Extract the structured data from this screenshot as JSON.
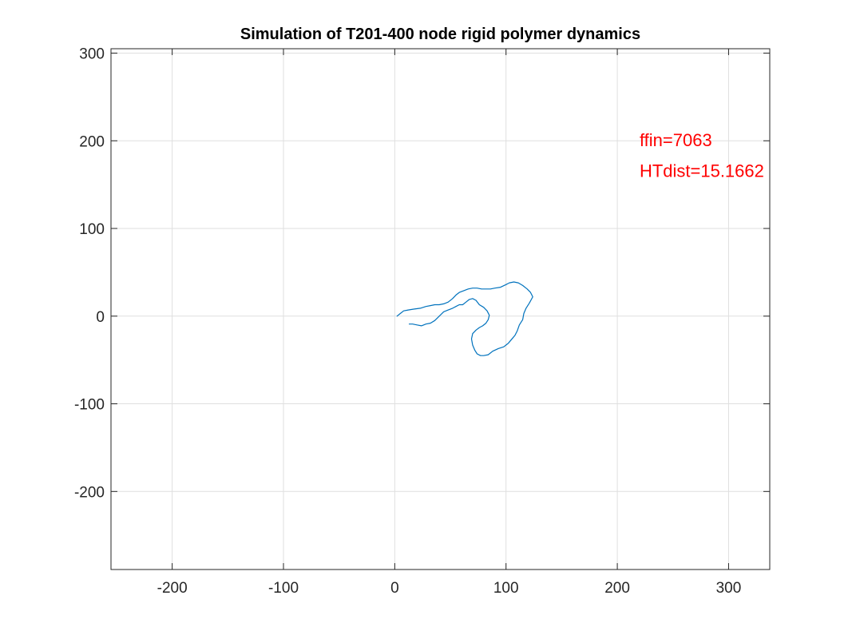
{
  "chart_data": {
    "type": "line",
    "title": "Simulation of T201-400 node rigid polymer dynamics",
    "xlabel": "",
    "ylabel": "",
    "xlim": [
      -255,
      337
    ],
    "ylim": [
      -289,
      305
    ],
    "xticks": [
      -200,
      -100,
      0,
      100,
      200,
      300
    ],
    "xtick_labels": [
      "-200",
      "-100",
      "0",
      "100",
      "200",
      "300"
    ],
    "yticks": [
      -200,
      -100,
      0,
      100,
      200,
      300
    ],
    "ytick_labels": [
      "-200",
      "-100",
      "0",
      "100",
      "200",
      "300"
    ],
    "grid": true,
    "series": [
      {
        "color": "#0072BD",
        "x": [
          2,
          5,
          8,
          12,
          17,
          23,
          28,
          32,
          36,
          40,
          44,
          48,
          52,
          55,
          58,
          62,
          66,
          70,
          74,
          78,
          82,
          86,
          90,
          95,
          100,
          103,
          107,
          111,
          115,
          119,
          122,
          124,
          121,
          118,
          116,
          115,
          112,
          110,
          108,
          106,
          102,
          98,
          93,
          88,
          84,
          80,
          77,
          74,
          72,
          70,
          69,
          70,
          73,
          76,
          79,
          82,
          84,
          85,
          83,
          80,
          76,
          73,
          70,
          67,
          64,
          61,
          58,
          55,
          52,
          48,
          44,
          40,
          36,
          32,
          28,
          24,
          20,
          16,
          13
        ],
        "y": [
          0,
          3,
          6,
          7,
          8,
          9,
          11,
          12,
          13,
          13,
          14,
          16,
          20,
          24,
          27,
          29,
          31,
          32,
          32,
          31,
          31,
          31,
          32,
          33,
          36,
          38,
          39,
          38,
          35,
          31,
          27,
          22,
          15,
          9,
          3,
          -4,
          -10,
          -17,
          -22,
          -25,
          -31,
          -35,
          -37,
          -40,
          -44,
          -45,
          -45,
          -43,
          -39,
          -33,
          -26,
          -20,
          -16,
          -13,
          -11,
          -8,
          -4,
          1,
          6,
          10,
          13,
          18,
          20,
          19,
          16,
          13,
          13,
          11,
          9,
          7,
          5,
          0,
          -5,
          -8,
          -9,
          -11,
          -10,
          -9,
          -9
        ]
      }
    ],
    "annotations": [
      {
        "text": "ffin=7063",
        "x": 220,
        "y": 201,
        "color": "#FF0000"
      },
      {
        "text": "HTdist=15.1662",
        "x": 220,
        "y": 166,
        "color": "#FF0000"
      }
    ],
    "colors": {
      "axis": "#262626",
      "grid": "#dfdfdf",
      "background": "#ffffff"
    }
  }
}
